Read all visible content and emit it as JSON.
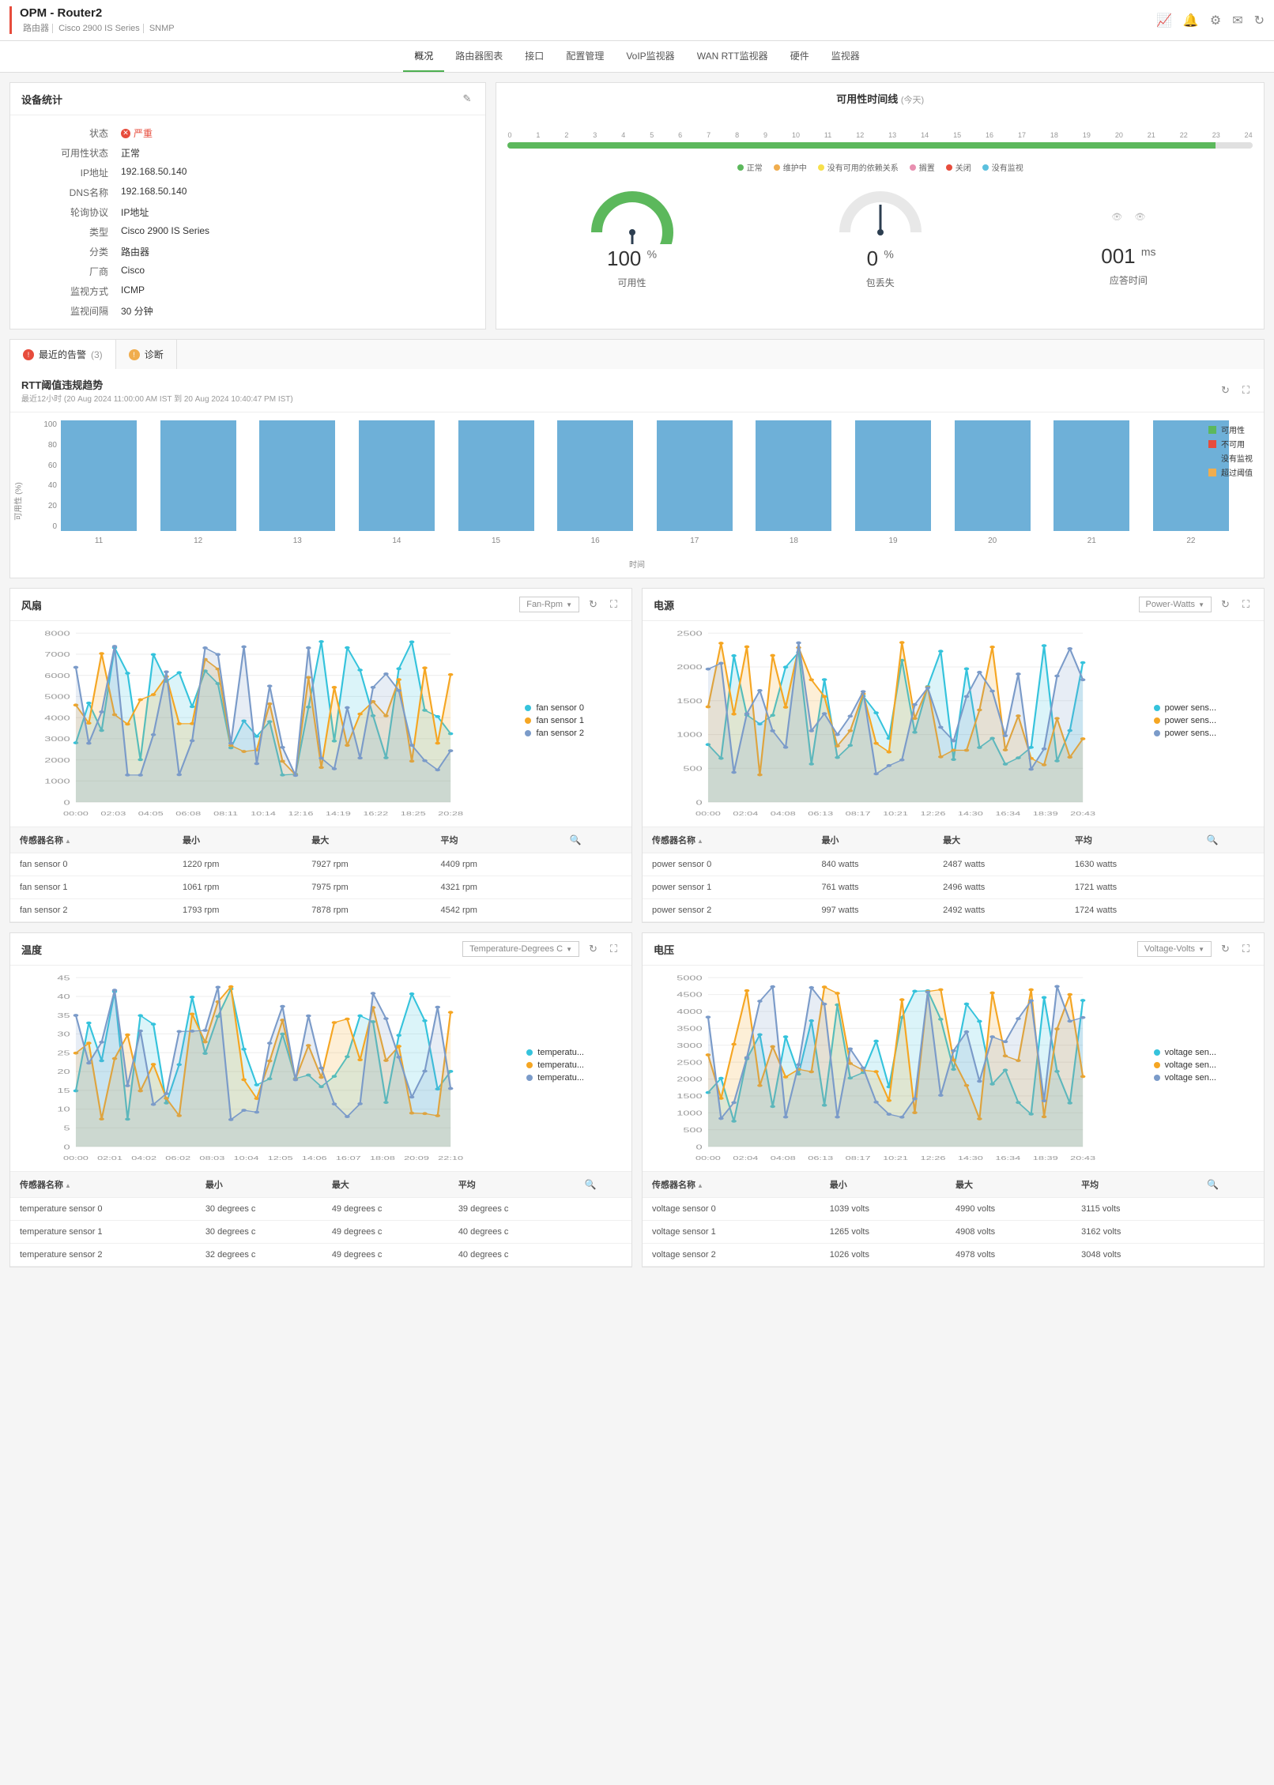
{
  "header": {
    "title": "OPM - Router2",
    "sub_device": "路由器",
    "sub_model": "Cisco 2900 IS Series",
    "sub_proto": "SNMP"
  },
  "tabs": [
    "概况",
    "路由器图表",
    "接口",
    "配置管理",
    "VoIP监视器",
    "WAN RTT监视器",
    "硬件",
    "监视器"
  ],
  "tabs_active_index": 0,
  "device_stats": {
    "title": "设备统计",
    "rows": [
      {
        "label": "状态",
        "value": "严重",
        "critical": true
      },
      {
        "label": "可用性状态",
        "value": "正常"
      },
      {
        "label": "IP地址",
        "value": "192.168.50.140"
      },
      {
        "label": "DNS名称",
        "value": "192.168.50.140"
      },
      {
        "label": "轮询协议",
        "value": "IP地址"
      },
      {
        "label": "类型",
        "value": "Cisco 2900 IS Series"
      },
      {
        "label": "分类",
        "value": "路由器"
      },
      {
        "label": "厂商",
        "value": "Cisco"
      },
      {
        "label": "监视方式",
        "value": "ICMP"
      },
      {
        "label": "监视间隔",
        "value": "30 分钟"
      }
    ]
  },
  "availability": {
    "title": "可用性时间线",
    "scope": "(今天)",
    "hours": [
      "0",
      "1",
      "2",
      "3",
      "4",
      "5",
      "6",
      "7",
      "8",
      "9",
      "10",
      "11",
      "12",
      "13",
      "14",
      "15",
      "16",
      "17",
      "18",
      "19",
      "20",
      "21",
      "22",
      "23",
      "24"
    ],
    "fill_percent": 95,
    "legend": [
      {
        "color": "#5cb85c",
        "label": "正常"
      },
      {
        "color": "#f0ad4e",
        "label": "维护中"
      },
      {
        "color": "#f7e04b",
        "label": "没有可用的依赖关系"
      },
      {
        "color": "#e88fb0",
        "label": "搁置"
      },
      {
        "color": "#e74c3c",
        "label": "关闭"
      },
      {
        "color": "#5bc0de",
        "label": "没有监视"
      }
    ],
    "gauges": [
      {
        "value": "100",
        "unit": "%",
        "label": "可用性",
        "color": "#5cb85c",
        "fill": 1.0,
        "type": "gauge"
      },
      {
        "value": "0",
        "unit": "%",
        "label": "包丢失",
        "color": "#5cb85c",
        "fill": 0.0,
        "type": "gauge"
      },
      {
        "value": "001",
        "unit": "ms",
        "label": "应答时间",
        "type": "number"
      }
    ]
  },
  "alert_tabs": [
    {
      "label": "最近的告警",
      "count": "(3)",
      "icon_color": "#e74c3c",
      "active": true
    },
    {
      "label": "诊断",
      "icon_color": "#f0ad4e"
    }
  ],
  "rtt": {
    "title": "RTT阈值违规趋势",
    "subtitle": "最近12小时 (20 Aug 2024 11:00:00 AM IST 到 20 Aug 2024 10:40:47 PM IST)",
    "y_ticks": [
      "100",
      "80",
      "60",
      "40",
      "20",
      "0"
    ],
    "y_label": "可用性 (%)",
    "x_label": "时间",
    "bars": [
      {
        "label": "11",
        "h": 100
      },
      {
        "label": "12",
        "h": 100
      },
      {
        "label": "13",
        "h": 100
      },
      {
        "label": "14",
        "h": 100
      },
      {
        "label": "15",
        "h": 100
      },
      {
        "label": "16",
        "h": 100
      },
      {
        "label": "17",
        "h": 100
      },
      {
        "label": "18",
        "h": 100
      },
      {
        "label": "19",
        "h": 100
      },
      {
        "label": "20",
        "h": 100
      },
      {
        "label": "21",
        "h": 100
      },
      {
        "label": "22",
        "h": 100
      }
    ],
    "bar_color": "#6eb0d8",
    "legend": [
      {
        "color": "#5cb85c",
        "label": "可用性"
      },
      {
        "color": "#e74c3c",
        "label": "不可用"
      },
      {
        "color": "#6eb0d8",
        "label": "没有监视"
      },
      {
        "color": "#f0ad4e",
        "label": "超过阈值"
      }
    ]
  },
  "sensor_panels": [
    {
      "title": "风扇",
      "dropdown": "Fan-Rpm",
      "y_max": 8000,
      "y_step": 1000,
      "x_ticks": [
        "00:00",
        "02:03",
        "04:05",
        "06:08",
        "08:11",
        "10:14",
        "12:16",
        "14:19",
        "16:22",
        "18:25",
        "20:28"
      ],
      "series": [
        {
          "name": "fan sensor 0",
          "color": "#35c3dc"
        },
        {
          "name": "fan sensor 1",
          "color": "#f5a623"
        },
        {
          "name": "fan sensor 2",
          "color": "#7b9bc9"
        }
      ],
      "table": {
        "cols": [
          "传感器名称",
          "最小",
          "最大",
          "平均"
        ],
        "rows": [
          [
            "fan sensor 0",
            "1220 rpm",
            "7927 rpm",
            "4409 rpm"
          ],
          [
            "fan sensor 1",
            "1061 rpm",
            "7975 rpm",
            "4321 rpm"
          ],
          [
            "fan sensor 2",
            "1793 rpm",
            "7878 rpm",
            "4542 rpm"
          ]
        ]
      }
    },
    {
      "title": "电源",
      "dropdown": "Power-Watts",
      "y_max": 2500,
      "y_step": 500,
      "x_ticks": [
        "00:00",
        "02:04",
        "04:08",
        "06:13",
        "08:17",
        "10:21",
        "12:26",
        "14:30",
        "16:34",
        "18:39",
        "20:43"
      ],
      "series": [
        {
          "name": "power sens...",
          "color": "#35c3dc"
        },
        {
          "name": "power sens...",
          "color": "#f5a623"
        },
        {
          "name": "power sens...",
          "color": "#7b9bc9"
        }
      ],
      "table": {
        "cols": [
          "传感器名称",
          "最小",
          "最大",
          "平均"
        ],
        "rows": [
          [
            "power sensor 0",
            "840 watts",
            "2487 watts",
            "1630 watts"
          ],
          [
            "power sensor 1",
            "761 watts",
            "2496 watts",
            "1721 watts"
          ],
          [
            "power sensor 2",
            "997 watts",
            "2492 watts",
            "1724 watts"
          ]
        ]
      }
    },
    {
      "title": "温度",
      "dropdown": "Temperature-Degrees C",
      "y_max": 45,
      "y_step": 5,
      "x_ticks": [
        "00:00",
        "02:01",
        "04:02",
        "06:02",
        "08:03",
        "10:04",
        "12:05",
        "14:06",
        "16:07",
        "18:08",
        "20:09",
        "22:10"
      ],
      "series": [
        {
          "name": "temperatu...",
          "color": "#35c3dc"
        },
        {
          "name": "temperatu...",
          "color": "#f5a623"
        },
        {
          "name": "temperatu...",
          "color": "#7b9bc9"
        }
      ],
      "table": {
        "cols": [
          "传感器名称",
          "最小",
          "最大",
          "平均"
        ],
        "rows": [
          [
            "temperature sensor 0",
            "30 degrees c",
            "49 degrees c",
            "39 degrees c"
          ],
          [
            "temperature sensor 1",
            "30 degrees c",
            "49 degrees c",
            "40 degrees c"
          ],
          [
            "temperature sensor 2",
            "32 degrees c",
            "49 degrees c",
            "40 degrees c"
          ]
        ]
      }
    },
    {
      "title": "电压",
      "dropdown": "Voltage-Volts",
      "y_max": 5000,
      "y_step": 500,
      "x_ticks": [
        "00:00",
        "02:04",
        "04:08",
        "06:13",
        "08:17",
        "10:21",
        "12:26",
        "14:30",
        "16:34",
        "18:39",
        "20:43"
      ],
      "series": [
        {
          "name": "voltage sen...",
          "color": "#35c3dc"
        },
        {
          "name": "voltage sen...",
          "color": "#f5a623"
        },
        {
          "name": "voltage sen...",
          "color": "#7b9bc9"
        }
      ],
      "table": {
        "cols": [
          "传感器名称",
          "最小",
          "最大",
          "平均"
        ],
        "rows": [
          [
            "voltage sensor 0",
            "1039 volts",
            "4990 volts",
            "3115 volts"
          ],
          [
            "voltage sensor 1",
            "1265 volts",
            "4908 volts",
            "3162 volts"
          ],
          [
            "voltage sensor 2",
            "1026 volts",
            "4978 volts",
            "3048 volts"
          ]
        ]
      }
    }
  ],
  "table_search_icon": "🔍"
}
